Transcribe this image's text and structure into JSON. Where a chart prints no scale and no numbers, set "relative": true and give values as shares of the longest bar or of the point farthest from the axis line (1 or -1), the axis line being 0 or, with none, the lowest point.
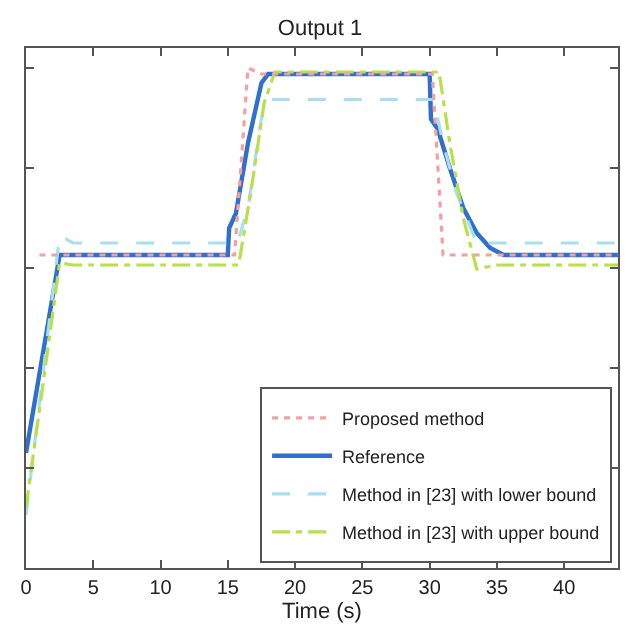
{
  "chart_data": {
    "type": "line",
    "title": "Output 1",
    "xlabel": "Time (s)",
    "relative": true,
    "tick_labels": "x",
    "legend": "bottom right",
    "grid": false,
    "xlim": [
      0,
      44
    ],
    "xticks": [
      0,
      5,
      10,
      15,
      20,
      25,
      30,
      35,
      40
    ],
    "series": [
      {
        "name": "Proposed method",
        "color": "#f2a0a0",
        "line_style": "dotted",
        "x": [
          1,
          15.5,
          16.5,
          17.5,
          30.2,
          31,
          44
        ],
        "values": [
          0.626,
          0.626,
          1.0,
          0.988,
          0.988,
          0.626,
          0.626
        ]
      },
      {
        "name": "Reference",
        "color": "#2f6fd0",
        "line_style": "solid",
        "x": [
          0,
          2.5,
          15,
          15.1,
          15.6,
          16.5,
          17.5,
          18,
          30,
          30.1,
          30.6,
          31.5,
          32.5,
          33.5,
          34.5,
          35.5,
          44
        ],
        "values": [
          0.23,
          0.626,
          0.626,
          0.68,
          0.709,
          0.85,
          0.97,
          0.988,
          0.988,
          0.898,
          0.878,
          0.8,
          0.72,
          0.67,
          0.64,
          0.626,
          0.626
        ]
      },
      {
        "name": "Method in [23] with lower bound",
        "color": "#a8dff0",
        "line_style": "dashed",
        "x": [
          0,
          2.5,
          3.5,
          15.7,
          16.5,
          17.5,
          18,
          30.3,
          31,
          32,
          33.5,
          44
        ],
        "values": [
          0.106,
          0.665,
          0.65,
          0.65,
          0.72,
          0.9,
          0.937,
          0.937,
          0.85,
          0.75,
          0.65,
          0.65
        ]
      },
      {
        "name": "Method in [23] with upper bound",
        "color": "#b8e04a",
        "line_style": "dashdot",
        "x": [
          0,
          2.5,
          3.5,
          15.8,
          16.7,
          17.7,
          18.5,
          30.7,
          31.5,
          32.5,
          33.5,
          35,
          44
        ],
        "values": [
          0.12,
          0.61,
          0.606,
          0.606,
          0.75,
          0.93,
          0.992,
          0.992,
          0.85,
          0.7,
          0.598,
          0.606,
          0.606
        ]
      }
    ]
  }
}
